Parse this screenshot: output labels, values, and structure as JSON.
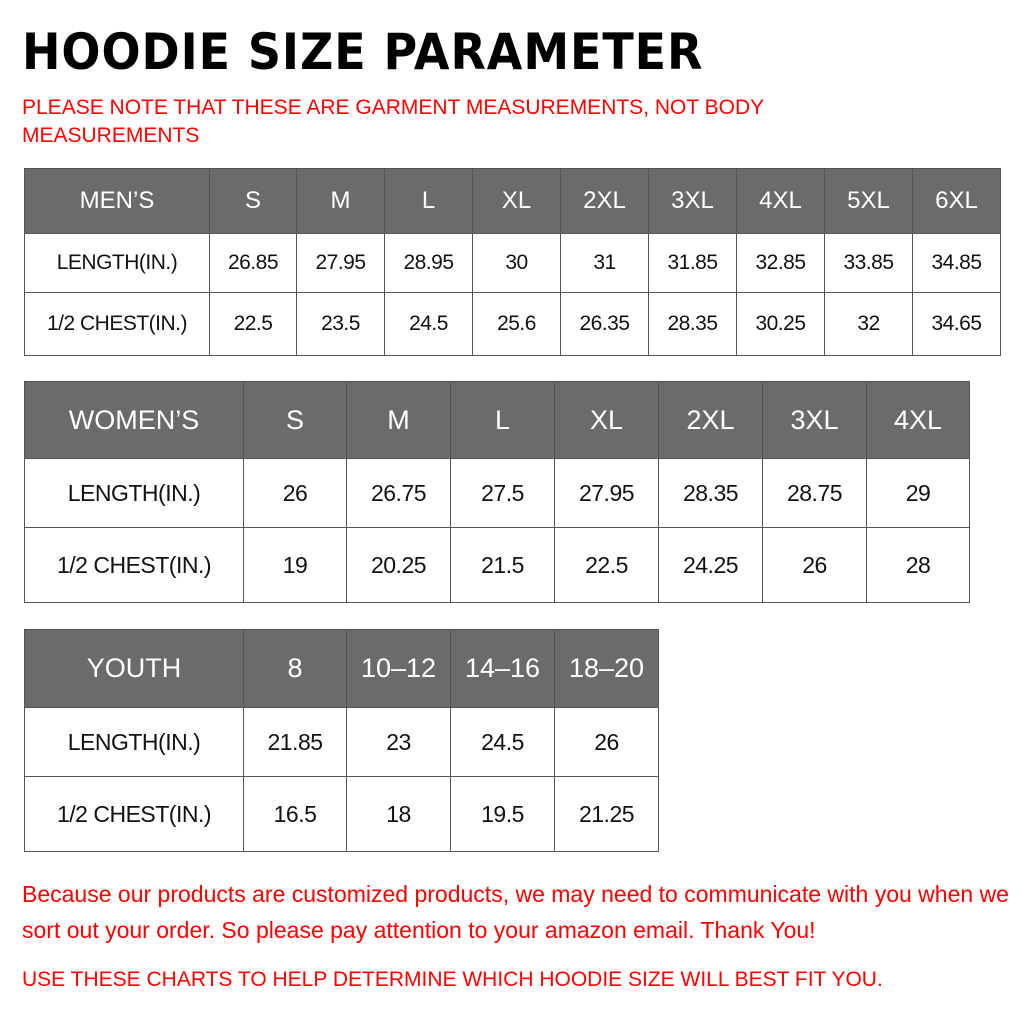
{
  "title": "HOODIE SIZE PARAMETER",
  "note": "PLEASE NOTE THAT THESE ARE GARMENT MEASUREMENTS, NOT BODY MEASUREMENTS",
  "colors": {
    "header_bg": "#6b6b6b",
    "accent_red": "#ff0000"
  },
  "tables": {
    "men": {
      "header": [
        "MEN’S",
        "S",
        "M",
        "L",
        "XL",
        "2XL",
        "3XL",
        "4XL",
        "5XL",
        "6XL"
      ],
      "rows": [
        [
          "LENGTH(IN.)",
          "26.85",
          "27.95",
          "28.95",
          "30",
          "31",
          "31.85",
          "32.85",
          "33.85",
          "34.85"
        ],
        [
          "1/2 CHEST(IN.)",
          "22.5",
          "23.5",
          "24.5",
          "25.6",
          "26.35",
          "28.35",
          "30.25",
          "32",
          "34.65"
        ]
      ]
    },
    "women": {
      "header": [
        "WOMEN’S",
        "S",
        "M",
        "L",
        "XL",
        "2XL",
        "3XL",
        "4XL"
      ],
      "rows": [
        [
          "LENGTH(IN.)",
          "26",
          "26.75",
          "27.5",
          "27.95",
          "28.35",
          "28.75",
          "29"
        ],
        [
          "1/2 CHEST(IN.)",
          "19",
          "20.25",
          "21.5",
          "22.5",
          "24.25",
          "26",
          "28"
        ]
      ]
    },
    "youth": {
      "header": [
        "YOUTH",
        "8",
        "10–12",
        "14–16",
        "18–20"
      ],
      "rows": [
        [
          "LENGTH(IN.)",
          "21.85",
          "23",
          "24.5",
          "26"
        ],
        [
          "1/2 CHEST(IN.)",
          "16.5",
          "18",
          "19.5",
          "21.25"
        ]
      ]
    }
  },
  "footer": {
    "message": "Because our products are customized products, we may need to communicate with you when we sort out your order. So please pay attention to your amazon email. Thank You!",
    "instruction": "USE THESE CHARTS TO HELP DETERMINE WHICH HOODIE SIZE WILL BEST FIT YOU."
  }
}
